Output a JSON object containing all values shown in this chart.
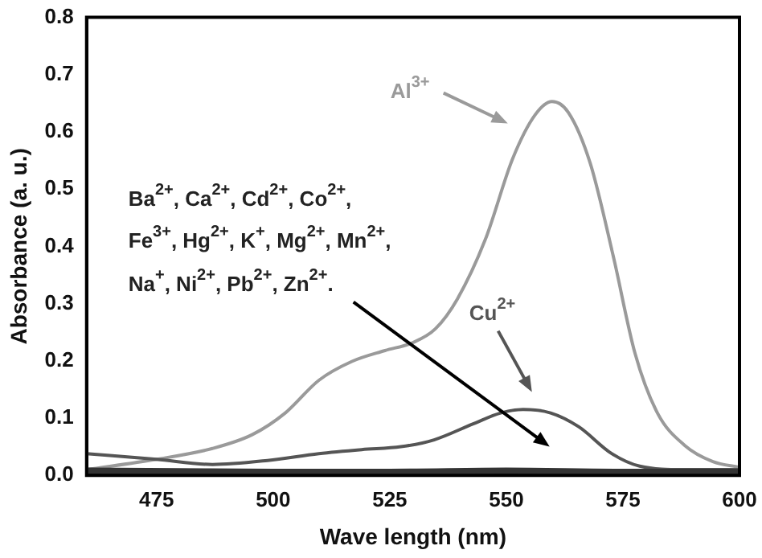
{
  "chart_data": {
    "type": "line",
    "xlabel": "Wave length (nm)",
    "ylabel": "Absorbance (a. u.)",
    "xlim": [
      460,
      600
    ],
    "xticks": [
      475,
      500,
      525,
      550,
      575,
      600
    ],
    "ylim": [
      0,
      0.8
    ],
    "yticks": [
      {
        "value": 0,
        "label": "0.0"
      },
      {
        "value": 0.1,
        "label": "0.1"
      },
      {
        "value": 0.2,
        "label": "0.2"
      },
      {
        "value": 0.3,
        "label": "0.3"
      },
      {
        "value": 0.4,
        "label": "0.4"
      },
      {
        "value": 0.5,
        "label": "0.5"
      },
      {
        "value": 0.6,
        "label": "0.6"
      },
      {
        "value": 0.7,
        "label": "0.7"
      },
      {
        "value": 0.8,
        "label": "0.8"
      }
    ],
    "grid": false,
    "legend": false,
    "marker": "none",
    "line_style": "solid",
    "series": [
      {
        "color": "#9a9a9a",
        "x": [
          460,
          475,
          487,
          495.5,
          502.6,
          509.8,
          516.9,
          524,
          530,
          534.8,
          539.5,
          545.5,
          551.4,
          556.2,
          559.8,
          563.3,
          568,
          572.9,
          577.6,
          582.4,
          588.3,
          594.3,
          600
        ],
        "values": [
          0.01,
          0.028,
          0.047,
          0.071,
          0.109,
          0.166,
          0.199,
          0.218,
          0.232,
          0.256,
          0.308,
          0.412,
          0.554,
          0.63,
          0.653,
          0.634,
          0.545,
          0.384,
          0.213,
          0.109,
          0.052,
          0.024,
          0.014
        ]
      },
      {
        "color": "#555555",
        "x": [
          460,
          475,
          487,
          498.8,
          509.8,
          519,
          527.4,
          534.5,
          542.9,
          548.8,
          553.6,
          559.5,
          565.5,
          572.6,
          578.6,
          588,
          600
        ],
        "values": [
          0.038,
          0.028,
          0.019,
          0.026,
          0.038,
          0.045,
          0.05,
          0.062,
          0.09,
          0.109,
          0.115,
          0.109,
          0.085,
          0.038,
          0.016,
          0.01,
          0.01
        ]
      },
      {
        "color": "#333333",
        "x": [
          460,
          480,
          500,
          525,
          550,
          575,
          600
        ],
        "values": [
          0.008,
          0.007,
          0.006,
          0.006,
          0.008,
          0.006,
          0.006
        ]
      }
    ],
    "annotations": [
      "Al$^{3+}$",
      "Cu$^{2+}$",
      "Ba$^{2+}$, Ca$^{2+}$, Cd$^{2+}$, Co$^{2+}$,",
      "Fe$^{3+}$, Hg$^{2+}$, K$^{+}$, Mg$^{2+}$, Mn$^{2+}$,",
      "Na$^{+}$, Ni$^{2+}$, Pb$^{2+}$, Zn$^{2+}$."
    ]
  }
}
